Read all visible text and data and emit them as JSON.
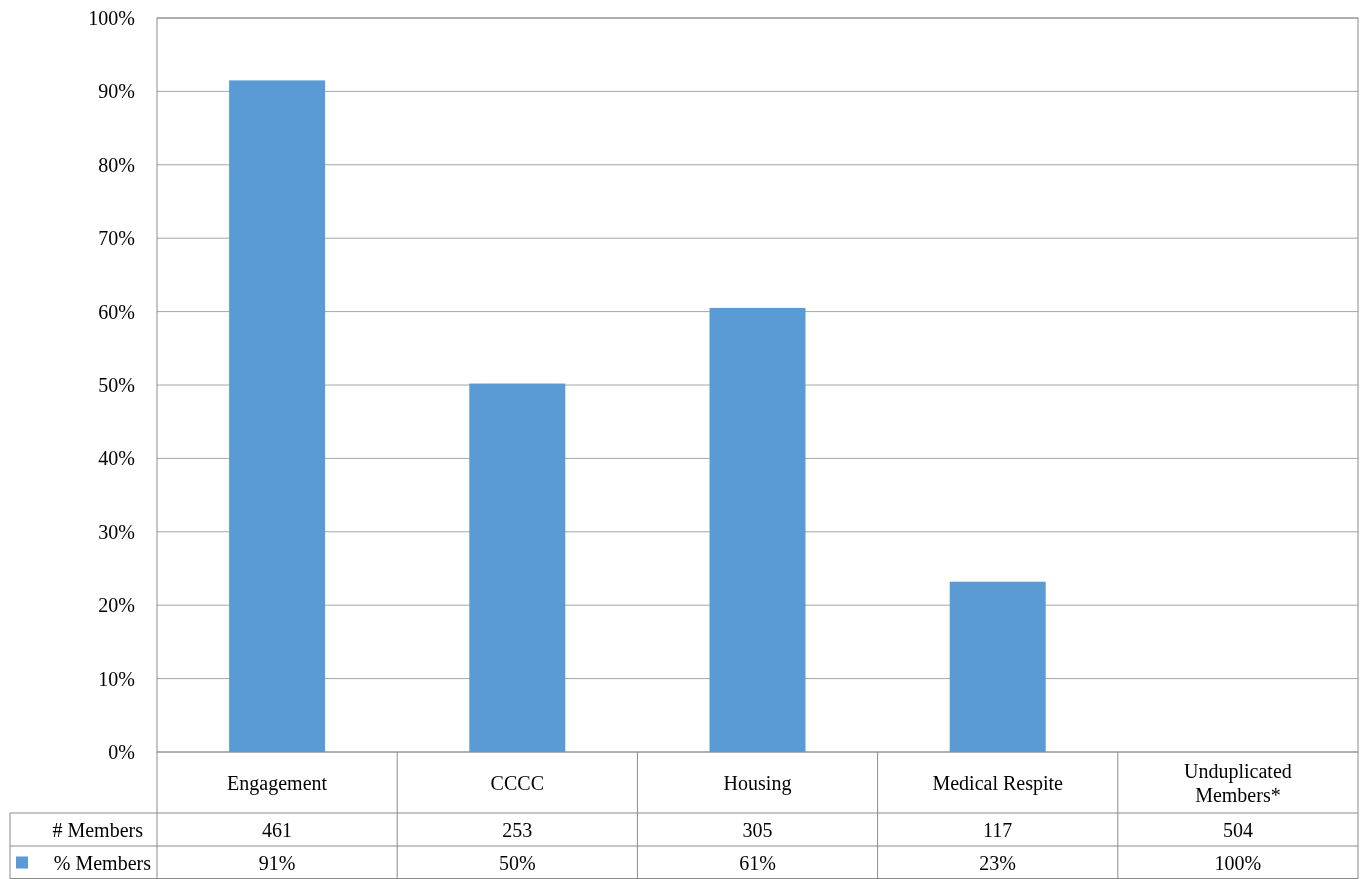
{
  "chart_data": {
    "type": "bar",
    "categories": [
      "Engagement",
      "CCCC",
      "Housing",
      "Medical Respite",
      "Unduplicated Members*"
    ],
    "series": [
      {
        "name": "% Members",
        "color": "#5b9bd5",
        "values": [
          91.5,
          50.2,
          60.5,
          23.2,
          null
        ],
        "value_labels": [
          "91%",
          "50%",
          "61%",
          "23%",
          "100%"
        ]
      }
    ],
    "ylim": [
      0,
      100
    ],
    "yticks": [
      {
        "value": 0,
        "label": "0%"
      },
      {
        "value": 10,
        "label": "10%"
      },
      {
        "value": 20,
        "label": "20%"
      },
      {
        "value": 30,
        "label": "30%"
      },
      {
        "value": 40,
        "label": "40%"
      },
      {
        "value": 50,
        "label": "50%"
      },
      {
        "value": 60,
        "label": "60%"
      },
      {
        "value": 70,
        "label": "70%"
      },
      {
        "value": 80,
        "label": "80%"
      },
      {
        "value": 90,
        "label": "90%"
      },
      {
        "value": 100,
        "label": "100%"
      }
    ],
    "grid": "y",
    "legend": "bottom",
    "annotations": [
      "# Members",
      "461",
      "253",
      "305",
      "117",
      "504"
    ]
  }
}
